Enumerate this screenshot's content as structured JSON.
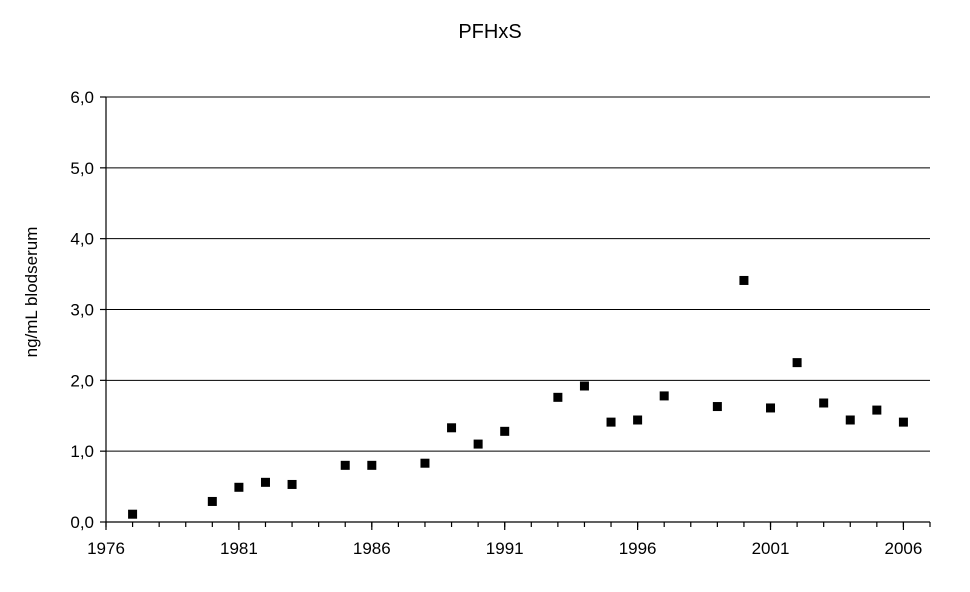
{
  "chart_data": {
    "type": "scatter",
    "title": "PFHxS",
    "xlabel": "",
    "ylabel": "ng/mL blodserum",
    "xlim": [
      1976,
      2007
    ],
    "ylim": [
      0,
      6
    ],
    "x_ticks": [
      "1976",
      "1981",
      "1986",
      "1991",
      "1996",
      "2001",
      "2006"
    ],
    "y_ticks": [
      "0,0",
      "1,0",
      "2,0",
      "3,0",
      "4,0",
      "5,0",
      "6,0"
    ],
    "grid": "horizontal",
    "marker": "square",
    "marker_color": "#000000",
    "points": [
      {
        "x": 1977,
        "y": 0.11
      },
      {
        "x": 1980,
        "y": 0.29
      },
      {
        "x": 1981,
        "y": 0.49
      },
      {
        "x": 1982,
        "y": 0.56
      },
      {
        "x": 1983,
        "y": 0.53
      },
      {
        "x": 1985,
        "y": 0.8
      },
      {
        "x": 1986,
        "y": 0.8
      },
      {
        "x": 1988,
        "y": 0.83
      },
      {
        "x": 1989,
        "y": 1.33
      },
      {
        "x": 1990,
        "y": 1.1
      },
      {
        "x": 1991,
        "y": 1.28
      },
      {
        "x": 1993,
        "y": 1.76
      },
      {
        "x": 1994,
        "y": 1.92
      },
      {
        "x": 1995,
        "y": 1.41
      },
      {
        "x": 1996,
        "y": 1.44
      },
      {
        "x": 1997,
        "y": 1.78
      },
      {
        "x": 1999,
        "y": 1.63
      },
      {
        "x": 2000,
        "y": 3.41
      },
      {
        "x": 2001,
        "y": 1.61
      },
      {
        "x": 2002,
        "y": 2.25
      },
      {
        "x": 2003,
        "y": 1.68
      },
      {
        "x": 2004,
        "y": 1.44
      },
      {
        "x": 2005,
        "y": 1.58
      },
      {
        "x": 2006,
        "y": 1.41
      }
    ]
  }
}
